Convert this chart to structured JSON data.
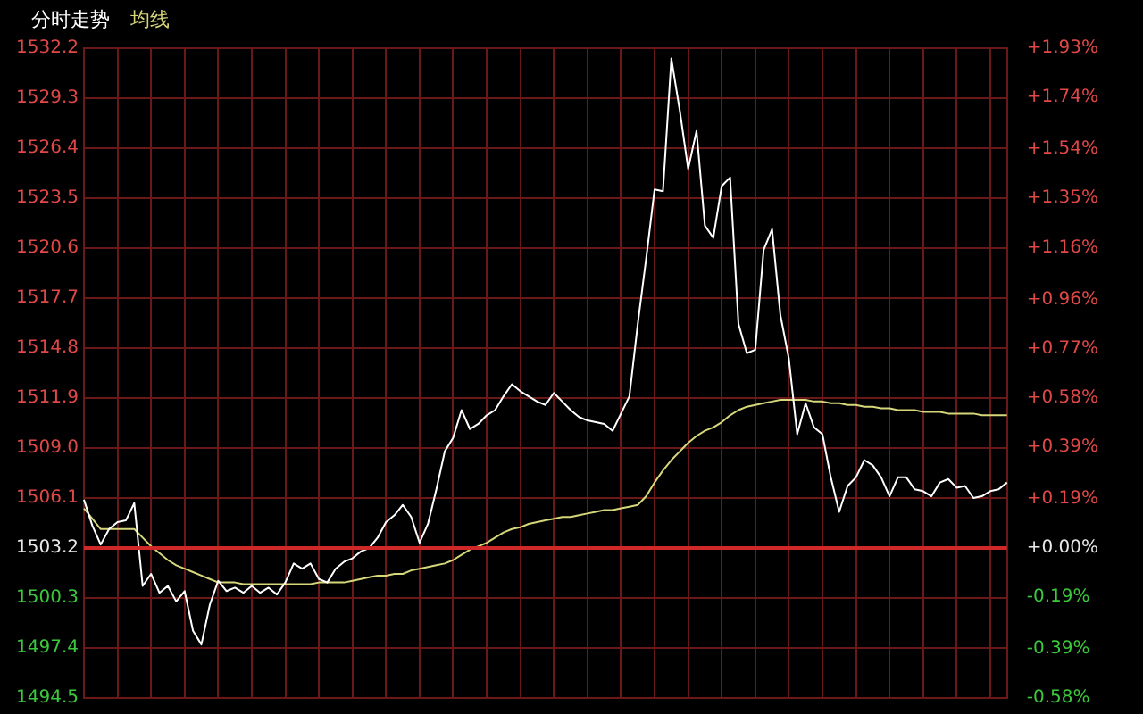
{
  "chart_data": {
    "type": "line",
    "categories": [
      null,
      null,
      null,
      null,
      null,
      null,
      null,
      null,
      null,
      null,
      null,
      null,
      null,
      null,
      null,
      null,
      null,
      null,
      null,
      null,
      null,
      null,
      null,
      null,
      null,
      null,
      null,
      null,
      null,
      null,
      null,
      null,
      null,
      null,
      null,
      null,
      null,
      null,
      null,
      null,
      null,
      null,
      null,
      null,
      null,
      null,
      null,
      null,
      null,
      null,
      null,
      null,
      null,
      null,
      null,
      null,
      null,
      null,
      null,
      null,
      null,
      null,
      null,
      null,
      null,
      null,
      null,
      null,
      null,
      null,
      null,
      null,
      null,
      null,
      null,
      null,
      null,
      null,
      null,
      null,
      null,
      null,
      null,
      null,
      null,
      null,
      null,
      null,
      null,
      null,
      null,
      null,
      null,
      null,
      null,
      null,
      null,
      null,
      null,
      null,
      null,
      null,
      null,
      null,
      null,
      null,
      null,
      null,
      null,
      null,
      null
    ],
    "series": [
      {
        "name": "分时走势",
        "color": "#ffffff",
        "values": [
          1506.0,
          1504.5,
          1503.4,
          1504.3,
          1504.7,
          1504.8,
          1505.8,
          1501.0,
          1501.7,
          1500.6,
          1501.0,
          1500.1,
          1500.7,
          1498.4,
          1497.6,
          1499.9,
          1501.3,
          1500.7,
          1500.9,
          1500.6,
          1501.0,
          1500.6,
          1500.9,
          1500.5,
          1501.2,
          1502.3,
          1502.0,
          1502.3,
          1501.4,
          1501.2,
          1502.0,
          1502.4,
          1502.6,
          1503.0,
          1503.2,
          1503.8,
          1504.7,
          1505.1,
          1505.7,
          1505.0,
          1503.5,
          1504.6,
          1506.6,
          1508.8,
          1509.6,
          1511.2,
          1510.1,
          1510.4,
          1510.9,
          1511.2,
          1512.0,
          1512.7,
          1512.3,
          1512.0,
          1511.7,
          1511.5,
          1512.2,
          1511.7,
          1511.2,
          1510.8,
          1510.6,
          1510.5,
          1510.4,
          1510.0,
          1511.0,
          1512.0,
          1516.2,
          1520.0,
          1524.0,
          1523.9,
          1531.6,
          1528.6,
          1525.2,
          1527.4,
          1521.9,
          1521.2,
          1524.2,
          1524.7,
          1516.2,
          1514.5,
          1514.7,
          1520.5,
          1521.7,
          1516.7,
          1514.2,
          1509.8,
          1511.6,
          1510.2,
          1509.8,
          1507.3,
          1505.3,
          1506.8,
          1507.3,
          1508.3,
          1508.0,
          1507.3,
          1506.2,
          1507.3,
          1507.3,
          1506.6,
          1506.5,
          1506.2,
          1507.0,
          1507.2,
          1506.7,
          1506.8,
          1506.1,
          1506.2,
          1506.5,
          1506.6,
          1507.0
        ]
      },
      {
        "name": "均线",
        "color": "#d6d67a",
        "values": [
          1505.5,
          1504.9,
          1504.3,
          1504.3,
          1504.3,
          1504.3,
          1504.3,
          1503.8,
          1503.3,
          1502.9,
          1502.5,
          1502.2,
          1502.0,
          1501.8,
          1501.6,
          1501.4,
          1501.2,
          1501.2,
          1501.2,
          1501.1,
          1501.1,
          1501.1,
          1501.1,
          1501.1,
          1501.1,
          1501.1,
          1501.1,
          1501.1,
          1501.2,
          1501.2,
          1501.2,
          1501.2,
          1501.3,
          1501.4,
          1501.5,
          1501.6,
          1501.6,
          1501.7,
          1501.7,
          1501.9,
          1502.0,
          1502.1,
          1502.2,
          1502.3,
          1502.5,
          1502.8,
          1503.1,
          1503.3,
          1503.5,
          1503.8,
          1504.1,
          1504.3,
          1504.4,
          1504.6,
          1504.7,
          1504.8,
          1504.9,
          1505.0,
          1505.0,
          1505.1,
          1505.2,
          1505.3,
          1505.4,
          1505.4,
          1505.5,
          1505.6,
          1505.7,
          1506.2,
          1507.0,
          1507.7,
          1508.3,
          1508.8,
          1509.3,
          1509.7,
          1510.0,
          1510.2,
          1510.5,
          1510.9,
          1511.2,
          1511.4,
          1511.5,
          1511.6,
          1511.7,
          1511.8,
          1511.8,
          1511.8,
          1511.8,
          1511.7,
          1511.7,
          1511.6,
          1511.6,
          1511.5,
          1511.5,
          1511.4,
          1511.4,
          1511.3,
          1511.3,
          1511.2,
          1511.2,
          1511.2,
          1511.1,
          1511.1,
          1511.1,
          1511.0,
          1511.0,
          1511.0,
          1511.0,
          1510.9,
          1510.9,
          1510.9,
          1510.9
        ]
      }
    ],
    "ylim": [
      1494.5,
      1532.2
    ],
    "yticks": [
      1494.5,
      1497.4,
      1500.3,
      1503.2,
      1506.1,
      {
        "value": 1509,
        "label": "1509.0"
      },
      1511.9,
      1514.8,
      1517.7,
      1520.6,
      1523.5,
      1526.4,
      1529.3,
      1532.2
    ],
    "y2lim": [
      -0.58,
      1.93
    ],
    "y2ticks": [
      {
        "value": -0.58,
        "label": "-0.58%"
      },
      {
        "value": -0.39,
        "label": "-0.39%"
      },
      {
        "value": -0.19,
        "label": "-0.19%"
      },
      {
        "value": 0,
        "label": "+0.00%"
      },
      {
        "value": 0.19,
        "label": "+0.19%"
      },
      {
        "value": 0.39,
        "label": "+0.39%"
      },
      {
        "value": 0.58,
        "label": "+0.58%"
      },
      {
        "value": 0.77,
        "label": "+0.77%"
      },
      {
        "value": 0.96,
        "label": "+0.96%"
      },
      {
        "value": 1.16,
        "label": "+1.16%"
      },
      {
        "value": 1.35,
        "label": "+1.35%"
      },
      {
        "value": 1.54,
        "label": "+1.54%"
      },
      {
        "value": 1.74,
        "label": "+1.74%"
      },
      {
        "value": 1.93,
        "label": "+1.93%"
      }
    ],
    "ref_lines": [
      {
        "axis": "y",
        "value": 1503.2,
        "color": "#d02828"
      }
    ],
    "grid": true,
    "legend": "top left",
    "marker": "none",
    "line_style": "solid"
  }
}
